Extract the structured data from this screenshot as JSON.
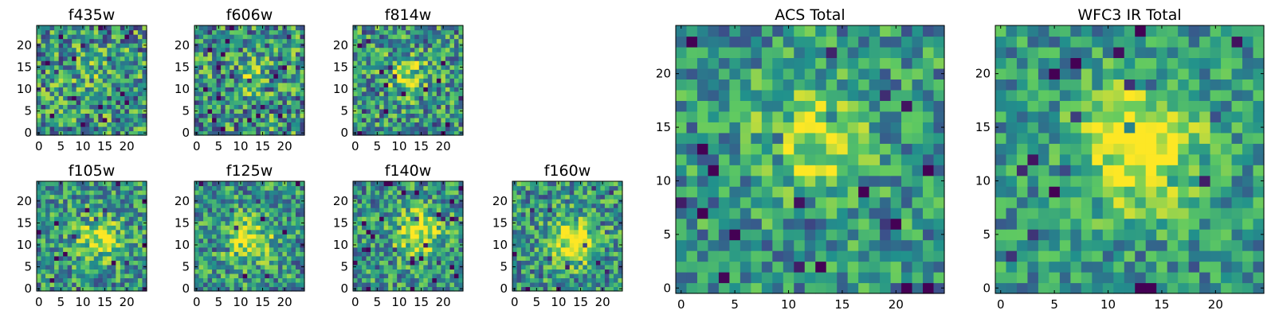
{
  "figure": {
    "colormap": "viridis",
    "colormap_stops": [
      "#440154",
      "#3b528b",
      "#21918c",
      "#5ec962",
      "#fde725"
    ]
  },
  "chart_data": [
    {
      "type": "heatmap",
      "title": "f435w",
      "size": 25,
      "xticks": [
        0,
        5,
        10,
        15,
        20
      ],
      "yticks": [
        0,
        5,
        10,
        15,
        20
      ],
      "xlim": [
        0,
        24
      ],
      "ylim": [
        0,
        24
      ],
      "source_strength": 0.1,
      "source_center": [
        12,
        14
      ],
      "source_sigma": 3.0,
      "noise": 0.55,
      "seed": 11
    },
    {
      "type": "heatmap",
      "title": "f606w",
      "size": 25,
      "xticks": [
        0,
        5,
        10,
        15,
        20
      ],
      "yticks": [
        0,
        5,
        10,
        15,
        20
      ],
      "xlim": [
        0,
        24
      ],
      "ylim": [
        0,
        24
      ],
      "source_strength": 0.15,
      "source_center": [
        12,
        13
      ],
      "source_sigma": 3.0,
      "noise": 0.55,
      "seed": 23
    },
    {
      "type": "heatmap",
      "title": "f814w",
      "size": 25,
      "xticks": [
        0,
        5,
        10,
        15,
        20
      ],
      "yticks": [
        0,
        5,
        10,
        15,
        20
      ],
      "xlim": [
        0,
        24
      ],
      "ylim": [
        0,
        24
      ],
      "source_strength": 0.35,
      "source_center": [
        12,
        13
      ],
      "source_sigma": 3.0,
      "noise": 0.5,
      "seed": 37
    },
    {
      "type": "heatmap",
      "title": "f105w",
      "size": 25,
      "xticks": [
        0,
        5,
        10,
        15,
        20
      ],
      "yticks": [
        0,
        5,
        10,
        15,
        20
      ],
      "xlim": [
        0,
        24
      ],
      "ylim": [
        0,
        24
      ],
      "source_strength": 0.4,
      "source_center": [
        14,
        11
      ],
      "source_sigma": 3.5,
      "noise": 0.45,
      "seed": 41
    },
    {
      "type": "heatmap",
      "title": "f125w",
      "size": 25,
      "xticks": [
        0,
        5,
        10,
        15,
        20
      ],
      "yticks": [
        0,
        5,
        10,
        15,
        20
      ],
      "xlim": [
        0,
        24
      ],
      "ylim": [
        0,
        24
      ],
      "source_strength": 0.45,
      "source_center": [
        12,
        11
      ],
      "source_sigma": 3.5,
      "noise": 0.45,
      "seed": 53
    },
    {
      "type": "heatmap",
      "title": "f140w",
      "size": 25,
      "xticks": [
        0,
        5,
        10,
        15,
        20
      ],
      "yticks": [
        0,
        5,
        10,
        15,
        20
      ],
      "xlim": [
        0,
        24
      ],
      "ylim": [
        0,
        24
      ],
      "source_strength": 0.5,
      "source_center": [
        14,
        13
      ],
      "source_sigma": 3.5,
      "noise": 0.45,
      "seed": 67
    },
    {
      "type": "heatmap",
      "title": "f160w",
      "size": 25,
      "xticks": [
        0,
        5,
        10,
        15,
        20
      ],
      "yticks": [
        0,
        5,
        10,
        15,
        20
      ],
      "xlim": [
        0,
        24
      ],
      "ylim": [
        0,
        24
      ],
      "source_strength": 0.55,
      "source_center": [
        13,
        11
      ],
      "source_sigma": 3.5,
      "noise": 0.45,
      "seed": 79
    },
    {
      "type": "heatmap",
      "title": "ACS Total",
      "size": 25,
      "xticks": [
        0,
        5,
        10,
        15,
        20
      ],
      "yticks": [
        0,
        5,
        10,
        15,
        20
      ],
      "xlim": [
        0,
        24
      ],
      "ylim": [
        0,
        24
      ],
      "source_strength": 0.35,
      "source_center": [
        12,
        14
      ],
      "source_sigma": 3.5,
      "noise": 0.4,
      "seed": 83
    },
    {
      "type": "heatmap",
      "title": "WFC3 IR Total",
      "size": 25,
      "xticks": [
        0,
        5,
        10,
        15,
        20
      ],
      "yticks": [
        0,
        5,
        10,
        15,
        20
      ],
      "xlim": [
        0,
        24
      ],
      "ylim": [
        0,
        24
      ],
      "source_strength": 0.55,
      "source_center": [
        13,
        13
      ],
      "source_sigma": 4.0,
      "noise": 0.35,
      "seed": 97
    }
  ]
}
